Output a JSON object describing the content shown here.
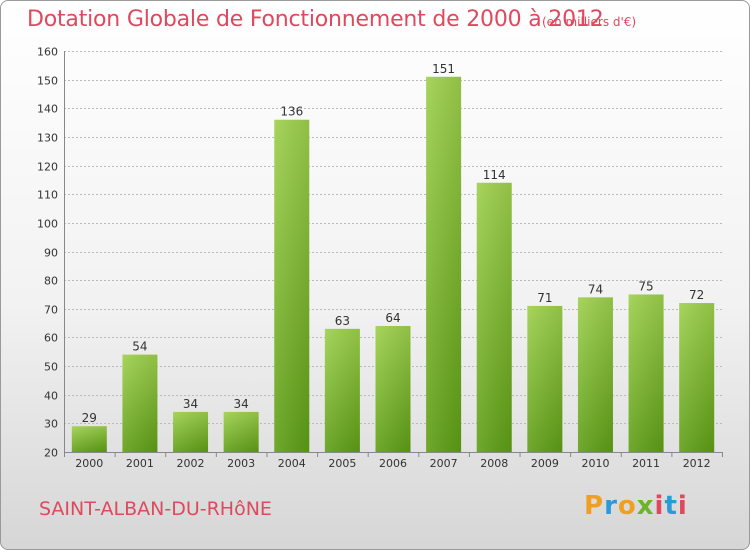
{
  "title": "Dotation Globale de Fonctionnement de 2000 à 2012",
  "subtitle": "(en milliers d'€)",
  "commune": "SAINT-ALBAN-DU-RHôNE",
  "logo": {
    "letters": [
      "P",
      "r",
      "o",
      "x",
      "i",
      "t",
      "i"
    ]
  },
  "colors": {
    "bar_top": "#9dd04c",
    "bar_bottom": "#5e9e15",
    "title": "#e0485e",
    "grid": "#bbbbbb"
  },
  "chart_data": {
    "type": "bar",
    "categories": [
      "2000",
      "2001",
      "2002",
      "2003",
      "2004",
      "2005",
      "2006",
      "2007",
      "2008",
      "2009",
      "2010",
      "2011",
      "2012"
    ],
    "values": [
      29,
      54,
      34,
      34,
      136,
      63,
      64,
      151,
      114,
      71,
      74,
      75,
      72
    ],
    "ylim": [
      20,
      160
    ],
    "yticks": [
      20,
      30,
      40,
      50,
      60,
      70,
      80,
      90,
      100,
      110,
      120,
      130,
      140,
      150,
      160
    ],
    "grid": true,
    "title": "Dotation Globale de Fonctionnement de 2000 à 2012",
    "xlabel": "",
    "ylabel": ""
  }
}
